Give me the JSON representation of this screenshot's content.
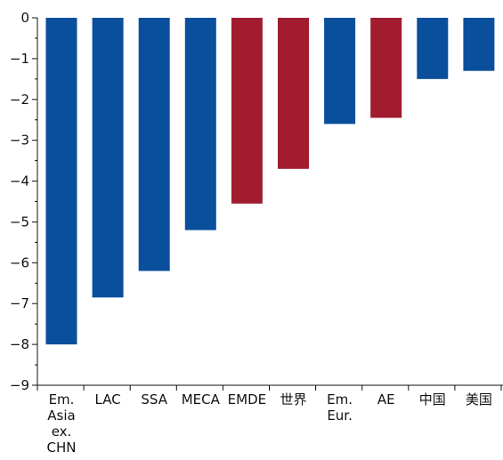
{
  "chart_data": {
    "type": "bar",
    "categories": [
      [
        "Em.",
        "Asia",
        "ex.",
        "CHN"
      ],
      [
        "LAC"
      ],
      [
        "SSA"
      ],
      [
        "MECA"
      ],
      [
        "EMDE"
      ],
      [
        "世界"
      ],
      [
        "Em.",
        "Eur."
      ],
      [
        "AE"
      ],
      [
        "中国"
      ],
      [
        "美国"
      ]
    ],
    "values": [
      -8.0,
      -6.85,
      -6.2,
      -5.2,
      -4.55,
      -3.7,
      -2.6,
      -2.45,
      -1.5,
      -1.3
    ],
    "bar_colors": [
      "#0a4f9c",
      "#0a4f9c",
      "#0a4f9c",
      "#0a4f9c",
      "#a01c2e",
      "#a01c2e",
      "#0a4f9c",
      "#a01c2e",
      "#0a4f9c",
      "#0a4f9c"
    ],
    "ylim": [
      -9,
      0
    ],
    "yticks": [
      0,
      -1,
      -2,
      -3,
      -4,
      -5,
      -6,
      -7,
      -8,
      -9
    ],
    "ytick_labels": [
      "0",
      "−1",
      "−2",
      "−3",
      "−4",
      "−5",
      "−6",
      "−7",
      "−8",
      "−9"
    ],
    "title": "",
    "xlabel": "",
    "ylabel": "",
    "grid": false
  }
}
